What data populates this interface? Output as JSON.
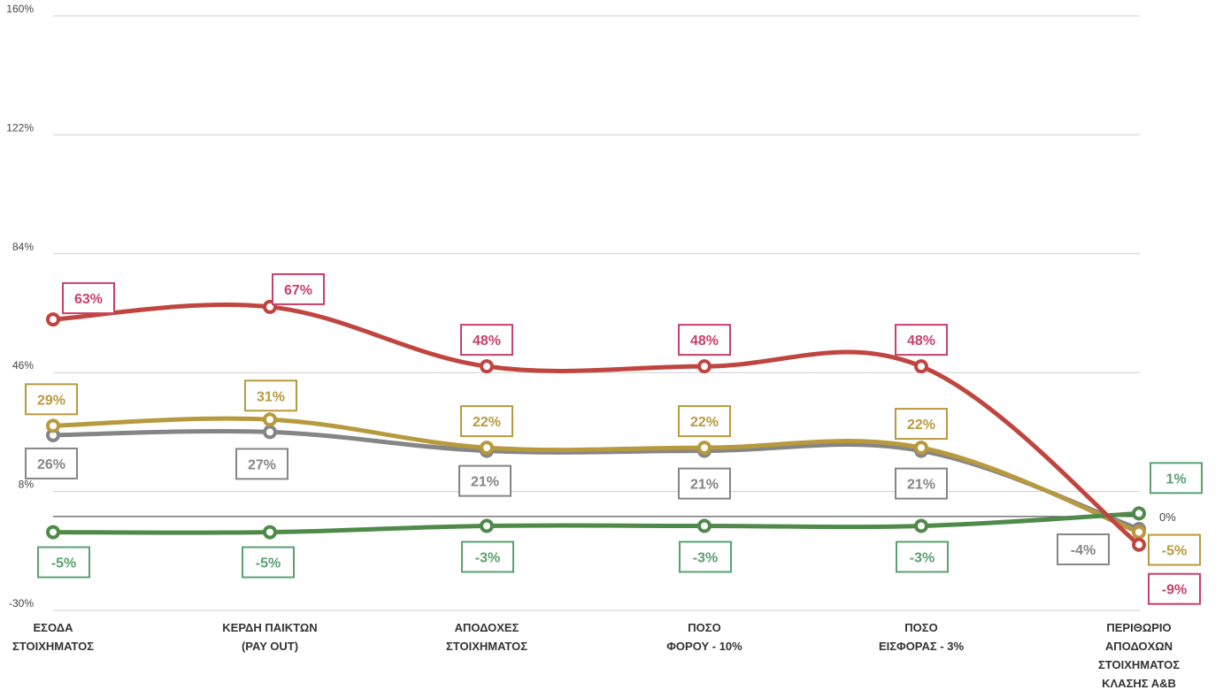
{
  "chart_data": {
    "type": "line",
    "categories": [
      [
        "ΕΣΟΔΑ",
        "ΣΤΟΙΧΗΜΑΤΟΣ"
      ],
      [
        "ΚΕΡΔΗ ΠΑΙΚΤΩΝ",
        "(PAY OUT)"
      ],
      [
        "ΑΠΟΔΟΧΕΣ",
        "ΣΤΟΙΧΗΜΑΤΟΣ"
      ],
      [
        "ΠΟΣΟ",
        "ΦΟΡΟΥ - 10%"
      ],
      [
        "ΠΟΣΟ",
        "ΕΙΣΦΟΡΑΣ - 3%"
      ],
      [
        "ΠΕΡΙΘΩΡΙΟ",
        "ΑΠΟΔΟΧΩΝ",
        "ΣΤΟΙΧΗΜΑΤΟΣ",
        "ΚΛΑΣΗΣ Α&Β"
      ]
    ],
    "y_ticks": [
      "160%",
      "122%",
      "84%",
      "46%",
      "8%",
      "-30%"
    ],
    "y_tick_values": [
      160,
      122,
      84,
      46,
      8,
      -30
    ],
    "ylim": [
      -30,
      160
    ],
    "zero_label": "0%",
    "grid": true,
    "series": [
      {
        "color": "#c0453f",
        "label_color": "#c9406a",
        "values": [
          63,
          67,
          48,
          48,
          48,
          -9
        ],
        "labels": [
          "63%",
          "67%",
          "48%",
          "48%",
          "48%",
          "-9%"
        ]
      },
      {
        "color": "#b89a3e",
        "label_color": "#b89a3e",
        "values": [
          29,
          31,
          22,
          22,
          22,
          -5
        ],
        "labels": [
          "29%",
          "31%",
          "22%",
          "22%",
          "22%",
          "-5%"
        ]
      },
      {
        "color": "#858585",
        "label_color": "#858585",
        "values": [
          26,
          27,
          21,
          21,
          21,
          -4
        ],
        "labels": [
          "26%",
          "27%",
          "21%",
          "21%",
          "21%",
          "-4%"
        ]
      },
      {
        "color": "#4f8a4a",
        "label_color": "#5aa070",
        "values": [
          -5,
          -5,
          -3,
          -3,
          -3,
          1
        ],
        "labels": [
          "-5%",
          "-5%",
          "-3%",
          "-3%",
          "-3%",
          "1%"
        ]
      }
    ]
  }
}
